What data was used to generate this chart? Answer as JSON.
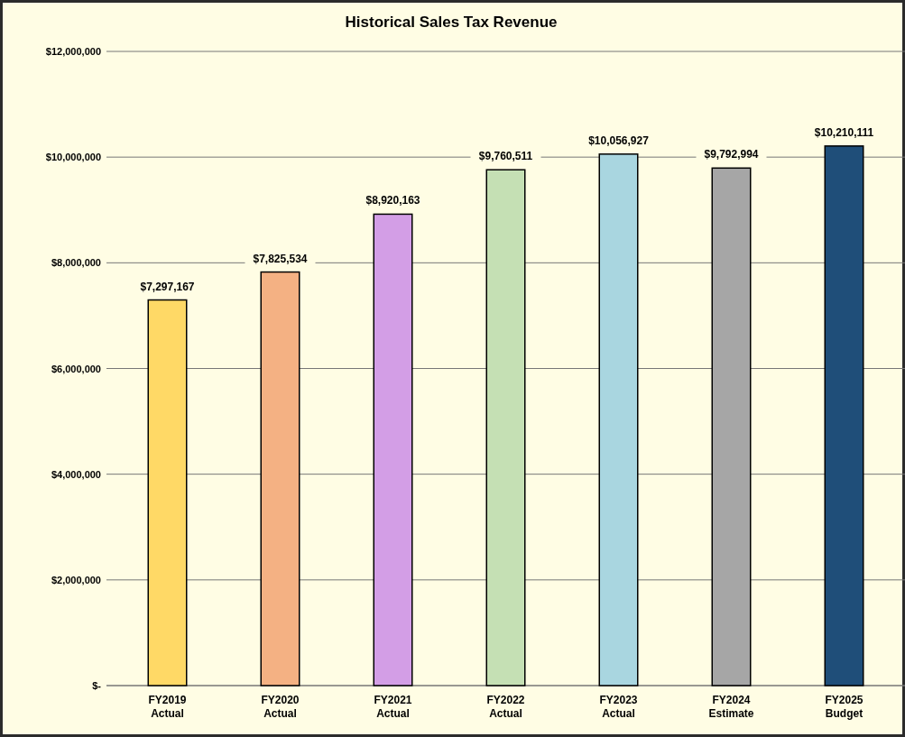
{
  "chart_data": {
    "type": "bar",
    "title": "Historical Sales Tax Revenue",
    "categories": [
      "FY2019 Actual",
      "FY2020 Actual",
      "FY2021 Actual",
      "FY2022 Actual",
      "FY2023 Actual",
      "FY2024 Estimate",
      "FY2025 Budget"
    ],
    "values": [
      7297167,
      7825534,
      8920163,
      9760511,
      10056927,
      9792994,
      10210111
    ],
    "value_labels": [
      "$7,297,167",
      "$7,825,534",
      "$8,920,163",
      "$9,760,511",
      "$10,056,927",
      "$9,792,994",
      "$10,210,111"
    ],
    "colors": [
      "#ffd966",
      "#f4b183",
      "#d39ee6",
      "#c5e0b4",
      "#a9d6e0",
      "#a6a6a6",
      "#1f4e79"
    ],
    "ylim": [
      0,
      12000000
    ],
    "yticks": [
      {
        "value": 0,
        "label": "$-"
      },
      {
        "value": 2000000,
        "label": "$2,000,000"
      },
      {
        "value": 4000000,
        "label": "$4,000,000"
      },
      {
        "value": 6000000,
        "label": "$6,000,000"
      },
      {
        "value": 8000000,
        "label": "$8,000,000"
      },
      {
        "value": 10000000,
        "label": "$10,000,000"
      },
      {
        "value": 12000000,
        "label": "$12,000,000"
      }
    ],
    "grid": "y"
  }
}
